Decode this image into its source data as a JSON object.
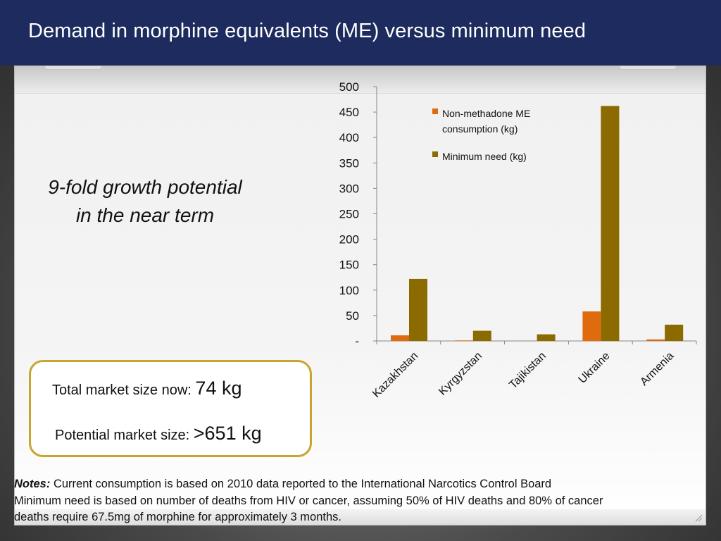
{
  "slide": {
    "title": "Demand in morphine equivalents (ME) versus minimum need",
    "growth_line1": "9-fold growth potential",
    "growth_line2": "in the near term",
    "market_now_label": "Total market size now:",
    "market_now_value": "74 kg",
    "market_potential_label": "Potential market size:",
    "market_potential_value": ">651 kg",
    "notes_label": "Notes:",
    "notes_line1": "Current consumption is based on 2010 data reported to the International Narcotics Control Board",
    "notes_line2": "Minimum need is based on number of deaths from HIV or cancer, assuming 50% of HIV deaths and 80% of cancer",
    "notes_line3": "deaths require 67.5mg of morphine for approximately 3 months."
  },
  "colors": {
    "title_bar": "#1d2b5e",
    "series_consumption": "#e06b0f",
    "series_need": "#8b6a00",
    "box_border": "#c8a52e"
  },
  "chart_data": {
    "type": "bar",
    "categories": [
      "Kazakhstan",
      "Kyrgyzstan",
      "Tajikistan",
      "Ukraine",
      "Armenia"
    ],
    "series": [
      {
        "name": "Non-methadone ME consumption (kg)",
        "values": [
          11,
          1,
          0,
          58,
          3
        ]
      },
      {
        "name": "Minimum need (kg)",
        "values": [
          122,
          20,
          13,
          462,
          32
        ]
      }
    ],
    "legend_lines": [
      [
        "Non-methadone ME",
        "consumption (kg)"
      ],
      [
        "Minimum need (kg)"
      ]
    ],
    "ylim": [
      0,
      500
    ],
    "yticks": [
      0,
      50,
      100,
      150,
      200,
      250,
      300,
      350,
      400,
      450,
      500
    ],
    "ytick_labels": [
      "-",
      "50",
      "100",
      "150",
      "200",
      "250",
      "300",
      "350",
      "400",
      "450",
      "500"
    ],
    "legend_position": "top-right",
    "grid": false
  }
}
